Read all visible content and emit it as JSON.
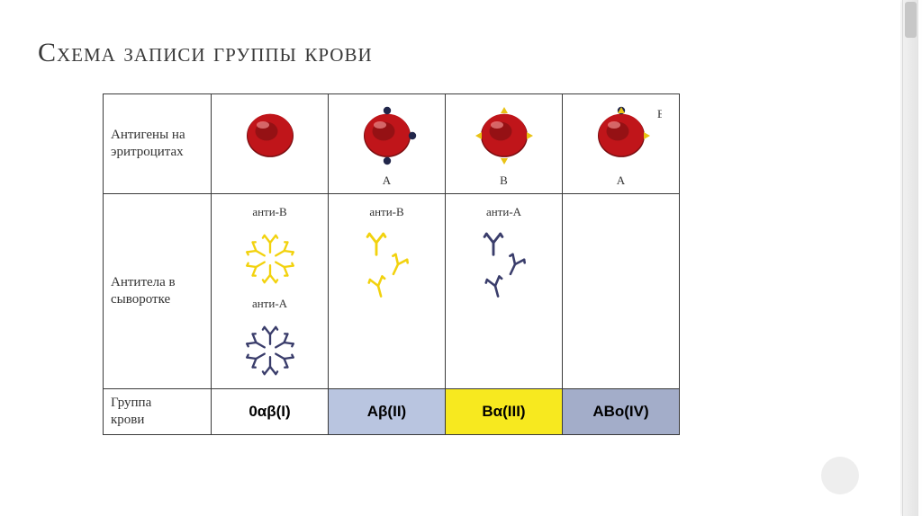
{
  "title": "Схема записи группы крови",
  "rows": {
    "antigens_label": "Антигены на\nэритроцитах",
    "antibodies_label": "Антитела в\nсыворотке",
    "group_label": "Группа\nкрови"
  },
  "columns": [
    {
      "antigen": {
        "markers_A": 0,
        "markers_B": 0,
        "label_below": "",
        "side_label": ""
      },
      "antibodies": [
        {
          "label": "анти-B",
          "color": "#f2d20e",
          "cluster": true
        },
        {
          "label": "анти-A",
          "color": "#3a3d6b",
          "cluster": true
        }
      ],
      "group": {
        "text": "0αβ(I)",
        "bg": "#ffffff"
      }
    },
    {
      "antigen": {
        "markers_A": 3,
        "markers_B": 0,
        "label_below": "A",
        "side_label": ""
      },
      "antibodies": [
        {
          "label": "анти-B",
          "color": "#f2d20e",
          "cluster": false
        }
      ],
      "group": {
        "text": "Aβ(II)",
        "bg": "#b9c5e0"
      }
    },
    {
      "antigen": {
        "markers_A": 0,
        "markers_B": 4,
        "label_below": "B",
        "side_label": ""
      },
      "antibodies": [
        {
          "label": "анти-A",
          "color": "#3a3d6b",
          "cluster": false
        }
      ],
      "group": {
        "text": "Bα(III)",
        "bg": "#f7e91f"
      }
    },
    {
      "antigen": {
        "markers_A": 1,
        "markers_B": 2,
        "label_below": "A",
        "side_label": "B"
      },
      "antibodies": [],
      "group": {
        "text": "ABo(IV)",
        "bg": "#a3adc9"
      }
    }
  ],
  "style": {
    "rbc_fill": "#c0151a",
    "rbc_dark": "#7a0d10",
    "rbc_dimple": "#8d1014",
    "rbc_radius": 26,
    "marker_A_color": "#21264a",
    "marker_B_color": "#e9c215",
    "antibody_yellow": "#f2d20e",
    "antibody_dark": "#3a3d6b",
    "border_color": "#3a3a3a",
    "label_fontsize": 15,
    "sublabel_fontsize": 13,
    "group_fontsize": 17,
    "title_fontsize": 30
  }
}
